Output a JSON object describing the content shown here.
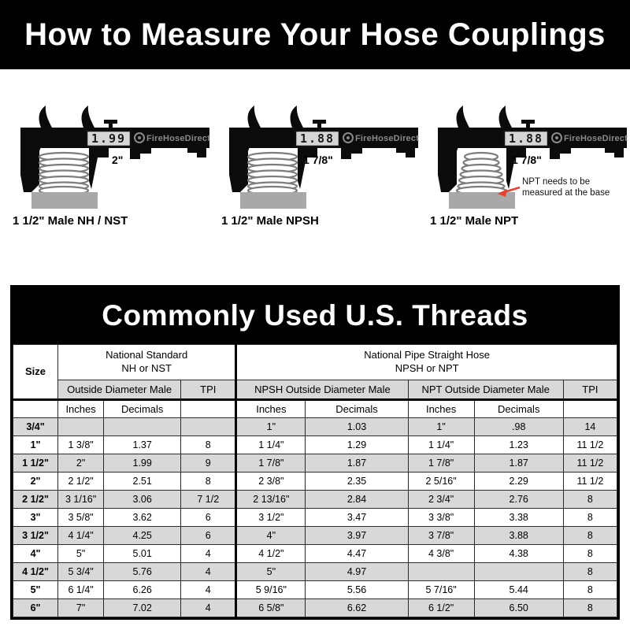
{
  "header": {
    "title": "How to Measure Your Hose Couplings"
  },
  "brand": "FireHoseDirect",
  "calipers": [
    {
      "display": "1.99",
      "measure_label": "2\"",
      "caption": "1 1/2\" Male NH / NST"
    },
    {
      "display": "1.88",
      "measure_label": "1 7/8\"",
      "caption": "1 1/2\" Male NPSH"
    },
    {
      "display": "1.88",
      "measure_label": "1 7/8\"",
      "caption": "1 1/2\" Male NPT",
      "annotation_line1": "NPT needs to be",
      "annotation_line2": "measured at the base"
    }
  ],
  "threads_table": {
    "title": "Commonly Used U.S. Threads",
    "col_size": "Size",
    "group1_line1": "National Standard",
    "group1_line2": "NH or NST",
    "group2_line1": "National Pipe Straight Hose",
    "group2_line2": "NPSH or NPT",
    "sub_od_male": "Outside Diameter Male",
    "sub_tpi": "TPI",
    "sub_npsh_od": "NPSH Outside Diameter Male",
    "sub_npt_od": "NPT Outside Diameter Male",
    "sub_tpi2": "TPI",
    "col_inches": "Inches",
    "col_decimals": "Decimals",
    "rows": [
      [
        "3/4\"",
        "",
        "",
        "",
        "1\"",
        "1.03",
        "1\"",
        ".98",
        "14"
      ],
      [
        "1\"",
        "1 3/8\"",
        "1.37",
        "8",
        "1 1/4\"",
        "1.29",
        "1 1/4\"",
        "1.23",
        "11 1/2"
      ],
      [
        "1 1/2\"",
        "2\"",
        "1.99",
        "9",
        "1 7/8\"",
        "1.87",
        "1 7/8\"",
        "1.87",
        "11 1/2"
      ],
      [
        "2\"",
        "2 1/2\"",
        "2.51",
        "8",
        "2 3/8\"",
        "2.35",
        "2 5/16\"",
        "2.29",
        "11 1/2"
      ],
      [
        "2 1/2\"",
        "3 1/16\"",
        "3.06",
        "7 1/2",
        "2 13/16\"",
        "2.84",
        "2 3/4\"",
        "2.76",
        "8"
      ],
      [
        "3\"",
        "3 5/8\"",
        "3.62",
        "6",
        "3 1/2\"",
        "3.47",
        "3 3/8\"",
        "3.38",
        "8"
      ],
      [
        "3 1/2\"",
        "4 1/4\"",
        "4.25",
        "6",
        "4\"",
        "3.97",
        "3 7/8\"",
        "3.88",
        "8"
      ],
      [
        "4\"",
        "5\"",
        "5.01",
        "4",
        "4 1/2\"",
        "4.47",
        "4 3/8\"",
        "4.38",
        "8"
      ],
      [
        "4 1/2\"",
        "5 3/4\"",
        "5.76",
        "4",
        "5\"",
        "4.97",
        "",
        "",
        "8"
      ],
      [
        "5\"",
        "6 1/4\"",
        "6.26",
        "4",
        "5 9/16\"",
        "5.56",
        "5 7/16\"",
        "5.44",
        "8"
      ],
      [
        "6\"",
        "7\"",
        "7.02",
        "4",
        "6 5/8\"",
        "6.62",
        "6 1/2\"",
        "6.50",
        "8"
      ]
    ]
  },
  "colors": {
    "banner_bg": "#000000",
    "table_stripe": "#d8d8d8",
    "annotation_arrow": "#e8402f",
    "lcd_bg": "#d6d6d6",
    "brand_gray": "#8a8a8a",
    "base_gray": "#a8a8a8"
  }
}
